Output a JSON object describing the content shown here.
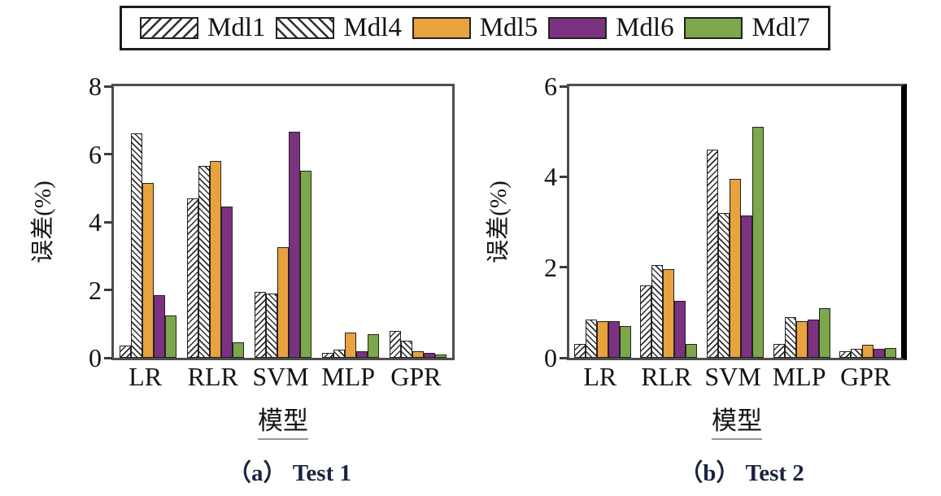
{
  "legend": {
    "items": [
      {
        "label": "Mdl1"
      },
      {
        "label": "Mdl4"
      },
      {
        "label": "Mdl5"
      },
      {
        "label": "Mdl6"
      },
      {
        "label": "Mdl7"
      }
    ]
  },
  "series_styles": {
    "Mdl1": {
      "fill": "hatch-up",
      "pattern": "diagonal-forward-hatch"
    },
    "Mdl4": {
      "fill": "hatch-down",
      "pattern": "diagonal-backward-hatch"
    },
    "Mdl5": {
      "fill": "#E8A23E",
      "pattern": "solid-orange"
    },
    "Mdl6": {
      "fill": "#7C3181",
      "pattern": "solid-purple"
    },
    "Mdl7": {
      "fill": "#7CA74A",
      "pattern": "solid-green"
    }
  },
  "chart_data": [
    {
      "type": "bar",
      "title": "（a） Test 1",
      "xlabel": "模型",
      "ylabel": "误差(%)",
      "categories": [
        "LR",
        "RLR",
        "SVM",
        "MLP",
        "GPR"
      ],
      "ylim": [
        0,
        8
      ],
      "yticks": [
        0,
        2,
        4,
        6,
        8
      ],
      "grid": false,
      "legend_position": "top",
      "series": [
        {
          "name": "Mdl1",
          "values": [
            0.35,
            4.7,
            1.95,
            0.15,
            0.8
          ]
        },
        {
          "name": "Mdl4",
          "values": [
            6.6,
            5.65,
            1.9,
            0.25,
            0.5
          ]
        },
        {
          "name": "Mdl5",
          "values": [
            5.15,
            5.8,
            3.25,
            0.75,
            0.2
          ]
        },
        {
          "name": "Mdl6",
          "values": [
            1.85,
            4.45,
            6.65,
            0.2,
            0.15
          ]
        },
        {
          "name": "Mdl7",
          "values": [
            1.25,
            0.45,
            5.5,
            0.7,
            0.1
          ]
        }
      ]
    },
    {
      "type": "bar",
      "title": "（b） Test 2",
      "xlabel": "模型",
      "ylabel": "误差(%)",
      "categories": [
        "LR",
        "RLR",
        "SVM",
        "MLP",
        "GPR"
      ],
      "ylim": [
        0,
        6
      ],
      "yticks": [
        0,
        2,
        4,
        6
      ],
      "grid": false,
      "legend_position": "top",
      "series": [
        {
          "name": "Mdl1",
          "values": [
            0.3,
            1.6,
            4.6,
            0.3,
            0.15
          ]
        },
        {
          "name": "Mdl4",
          "values": [
            0.85,
            2.05,
            3.2,
            0.9,
            0.2
          ]
        },
        {
          "name": "Mdl5",
          "values": [
            0.8,
            1.95,
            3.95,
            0.8,
            0.28
          ]
        },
        {
          "name": "Mdl6",
          "values": [
            0.8,
            1.25,
            3.15,
            0.85,
            0.2
          ]
        },
        {
          "name": "Mdl7",
          "values": [
            0.7,
            0.3,
            5.1,
            1.1,
            0.22
          ]
        }
      ]
    }
  ]
}
